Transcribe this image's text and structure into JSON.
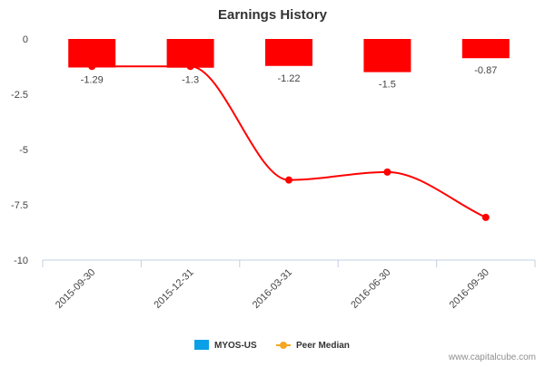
{
  "chart_data": {
    "type": "bar",
    "title": "Earnings History",
    "categories": [
      "2015-09-30",
      "2015-12-31",
      "2016-03-31",
      "2016-06-30",
      "2016-09-30"
    ],
    "ylim": [
      -10,
      0
    ],
    "yticks": [
      0,
      -2.5,
      -5,
      -7.5,
      -10
    ],
    "ytick_labels": [
      "0",
      "-2.5",
      "-5",
      "-7.5",
      "-10"
    ],
    "grid": false,
    "legend_position": "bottom",
    "series": [
      {
        "name": "MYOS-US",
        "type": "bar",
        "values": [
          -1.29,
          -1.3,
          -1.22,
          -1.5,
          -0.87
        ],
        "data_labels": [
          "-1.29",
          "-1.3",
          "-1.22",
          "-1.5",
          "-0.87"
        ],
        "legend_color": "#0aa0e8",
        "bar_color": "#ff0000"
      },
      {
        "name": "Peer Median",
        "type": "line",
        "values": [
          -1.24,
          -1.24,
          -6.38,
          -6.02,
          -8.07
        ],
        "color": "#ff0000",
        "legend_color": "#f5a623"
      }
    ]
  },
  "credit": "www.capitalcube.com"
}
